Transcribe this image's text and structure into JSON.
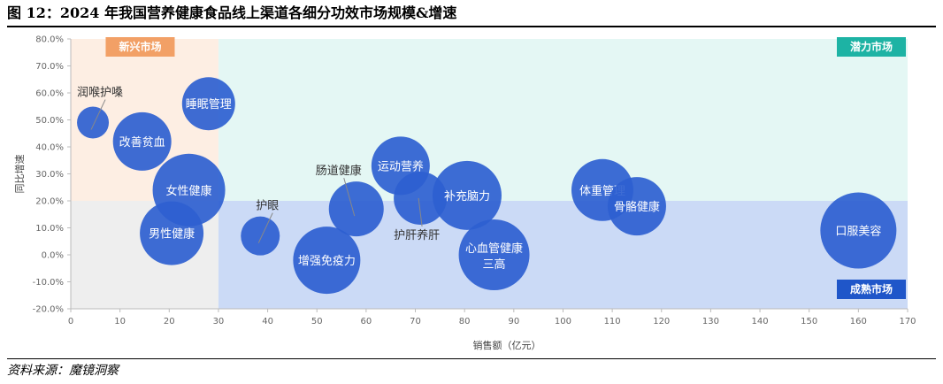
{
  "title": "图 12：2024 年我国营养健康食品线上渠道各细分功效市场规模&增速",
  "source": "资料来源：魔镜洞察",
  "chart_data": {
    "type": "scatter",
    "subtype": "bubble",
    "xlabel": "销售额（亿元）",
    "ylabel": "同比增速",
    "xlim": [
      0,
      170
    ],
    "ylim": [
      -0.2,
      0.8
    ],
    "x_ticks": [
      "0",
      "10",
      "20",
      "30",
      "40",
      "50",
      "60",
      "70",
      "80",
      "90",
      "100",
      "110",
      "120",
      "130",
      "140",
      "150",
      "160",
      "170"
    ],
    "y_ticks": [
      "80.0%",
      "70.0%",
      "60.0%",
      "50.0%",
      "40.0%",
      "30.0%",
      "20.0%",
      "10.0%",
      "0.0%",
      "-10.0%",
      "-20.0%"
    ],
    "quadrant_split": {
      "x": 30,
      "y": 0.2
    },
    "quadrants": [
      {
        "label": "新兴市场",
        "position": "top-left",
        "color": "#f2a066"
      },
      {
        "label": "潜力市场",
        "position": "top-right",
        "color": "#1db3a4"
      },
      {
        "label": "成熟市场",
        "position": "bottom-right",
        "color": "#1f56c9"
      }
    ],
    "colors": {
      "bubble": "#2e5fd0",
      "top_left_bg": "#fdeee3",
      "top_right_bg": "#e4f7f4",
      "bottom_left_bg": "#eeeeee",
      "bottom_right_bg": "#cbdaf6"
    },
    "points": [
      {
        "name": "润喉护嗓",
        "x": 4.5,
        "y": 0.49,
        "size": 18
      },
      {
        "name": "睡眠管理",
        "x": 28,
        "y": 0.56,
        "size": 30
      },
      {
        "name": "改善贫血",
        "x": 14.5,
        "y": 0.42,
        "size": 33
      },
      {
        "name": "女性健康",
        "x": 24,
        "y": 0.24,
        "size": 41
      },
      {
        "name": "男性健康",
        "x": 20.5,
        "y": 0.08,
        "size": 36
      },
      {
        "name": "护眼",
        "x": 38.5,
        "y": 0.07,
        "size": 22
      },
      {
        "name": "增强免疫力",
        "x": 52,
        "y": -0.02,
        "size": 38
      },
      {
        "name": "肠道健康",
        "x": 58,
        "y": 0.17,
        "size": 31
      },
      {
        "name": "运动营养",
        "x": 67,
        "y": 0.33,
        "size": 33
      },
      {
        "name": "护肝养肝",
        "x": 71,
        "y": 0.21,
        "size": 30
      },
      {
        "name": "补充脑力",
        "x": 80.5,
        "y": 0.22,
        "size": 39
      },
      {
        "name": "心血管健康 三高",
        "x": 86,
        "y": 0.0,
        "size": 40
      },
      {
        "name": "体重管理",
        "x": 108,
        "y": 0.24,
        "size": 35
      },
      {
        "name": "骨骼健康",
        "x": 115,
        "y": 0.18,
        "size": 33
      },
      {
        "name": "口服美容",
        "x": 160,
        "y": 0.09,
        "size": 43
      }
    ]
  }
}
